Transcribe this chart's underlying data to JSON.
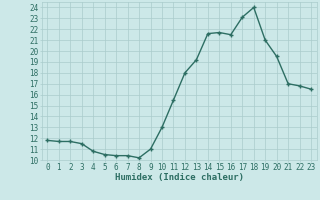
{
  "x": [
    0,
    1,
    2,
    3,
    4,
    5,
    6,
    7,
    8,
    9,
    10,
    11,
    12,
    13,
    14,
    15,
    16,
    17,
    18,
    19,
    20,
    21,
    22,
    23
  ],
  "y": [
    11.8,
    11.7,
    11.7,
    11.5,
    10.8,
    10.5,
    10.4,
    10.4,
    10.2,
    11.0,
    13.0,
    15.5,
    18.0,
    19.2,
    21.6,
    21.7,
    21.5,
    23.1,
    24.0,
    21.0,
    19.5,
    17.0,
    16.8,
    16.5
  ],
  "title": "",
  "xlabel": "Humidex (Indice chaleur)",
  "ylabel": "",
  "xlim": [
    -0.5,
    23.5
  ],
  "ylim": [
    10,
    24.5
  ],
  "yticks": [
    10,
    11,
    12,
    13,
    14,
    15,
    16,
    17,
    18,
    19,
    20,
    21,
    22,
    23,
    24
  ],
  "xticks": [
    0,
    1,
    2,
    3,
    4,
    5,
    6,
    7,
    8,
    9,
    10,
    11,
    12,
    13,
    14,
    15,
    16,
    17,
    18,
    19,
    20,
    21,
    22,
    23
  ],
  "line_color": "#2d6e63",
  "marker": "+",
  "marker_size": 3.5,
  "marker_lw": 1.0,
  "line_width": 1.0,
  "bg_color": "#cce8e8",
  "grid_color": "#aacccc",
  "tick_label_color": "#2d6e63",
  "axis_label_color": "#2d6e63",
  "font_size": 5.5,
  "xlabel_fontsize": 6.5,
  "xlabel_bold": true
}
